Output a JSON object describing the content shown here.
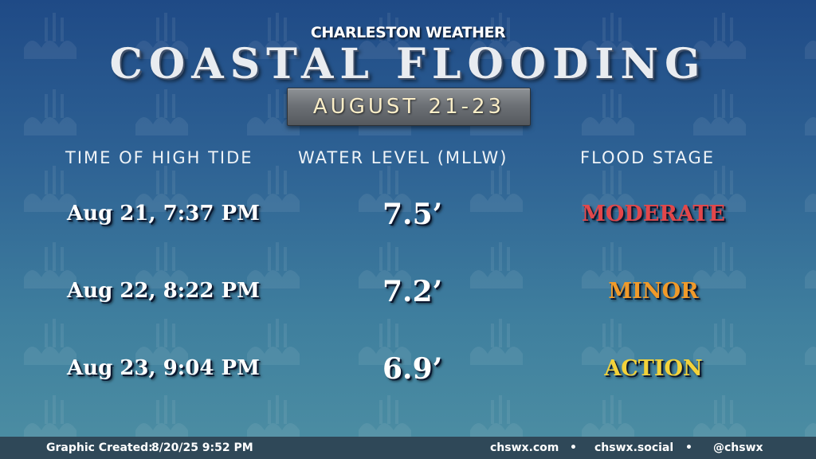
{
  "header": {
    "brand": "CHARLESTON WEATHER",
    "title": "COASTAL FLOODING",
    "date_range": "AUGUST 21-23"
  },
  "table": {
    "columns": [
      "TIME OF HIGH TIDE",
      "WATER LEVEL (MLLW)",
      "FLOOD STAGE"
    ],
    "rows": [
      {
        "time": "Aug 21, 7:37 PM",
        "level": "7.5’",
        "stage": "MODERATE",
        "stage_color": "#e2474a"
      },
      {
        "time": "Aug 22, 8:22 PM",
        "level": "7.2’",
        "stage": "MINOR",
        "stage_color": "#f09a2a"
      },
      {
        "time": "Aug 23, 9:04 PM",
        "level": "6.9’",
        "stage": "ACTION",
        "stage_color": "#f3d23a"
      }
    ]
  },
  "footer": {
    "created_label": "Graphic Created:",
    "created_value": "8/20/25 9:52 PM",
    "links": [
      "chswx.com",
      "chswx.social",
      "@chswx"
    ],
    "separator": "•"
  }
}
